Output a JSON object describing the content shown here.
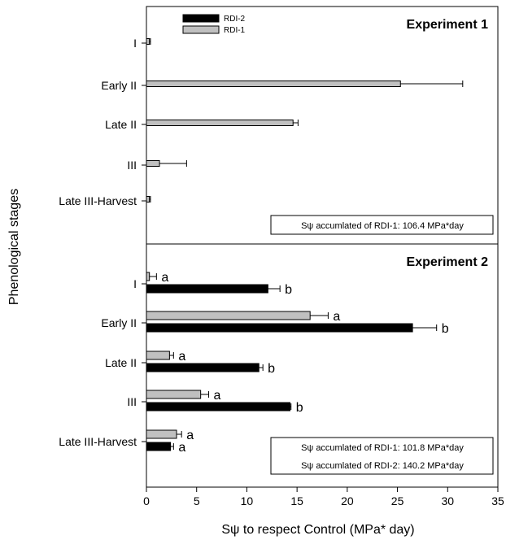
{
  "chart_data": {
    "type": "bar",
    "orientation": "horizontal",
    "ylabel": "Phenological stages",
    "xlabel": "Sψ to respect Control (MPa* day)",
    "xlim": [
      0,
      35
    ],
    "xticks": [
      "0",
      "5",
      "10",
      "15",
      "20",
      "25",
      "30",
      "35"
    ],
    "legend": {
      "placement": "top-left",
      "entries": [
        {
          "name": "RDI-2",
          "color": "#000000"
        },
        {
          "name": "RDI-1",
          "color": "#c0c0c0"
        }
      ]
    },
    "panels": [
      {
        "title": "Experiment 1",
        "categories": [
          "I",
          "Early II",
          "Late II",
          "III",
          "Late III-Harvest"
        ],
        "series": [
          {
            "name": "RDI-1",
            "color": "#c0c0c0",
            "values": [
              0.3,
              25.3,
              14.6,
              1.3,
              0.3
            ],
            "errors": [
              0.1,
              6.2,
              0.5,
              2.7,
              0.1
            ]
          }
        ],
        "annotations": [
          "Sψ accumlated of RDI-1:  106.4 MPa*day"
        ]
      },
      {
        "title": "Experiment 2",
        "categories": [
          "I",
          "Early II",
          "Late II",
          "III",
          "Late III-Harvest"
        ],
        "series": [
          {
            "name": "RDI-1",
            "color": "#c0c0c0",
            "values": [
              0.3,
              16.3,
              2.3,
              5.4,
              3.0
            ],
            "errors": [
              0.7,
              1.8,
              0.4,
              0.8,
              0.5
            ],
            "letters": [
              "a",
              "a",
              "a",
              "a",
              "a"
            ]
          },
          {
            "name": "RDI-2",
            "color": "#000000",
            "values": [
              12.1,
              26.5,
              11.2,
              14.3,
              2.4
            ],
            "errors": [
              1.2,
              2.4,
              0.4,
              0.1,
              0.3
            ],
            "letters": [
              "b",
              "b",
              "b",
              "b",
              "a"
            ]
          }
        ],
        "annotations": [
          "Sψ accumlated of RDI-1:  101.8 MPa*day",
          "Sψ accumlated of RDI-2:  140.2 MPa*day"
        ]
      }
    ]
  }
}
